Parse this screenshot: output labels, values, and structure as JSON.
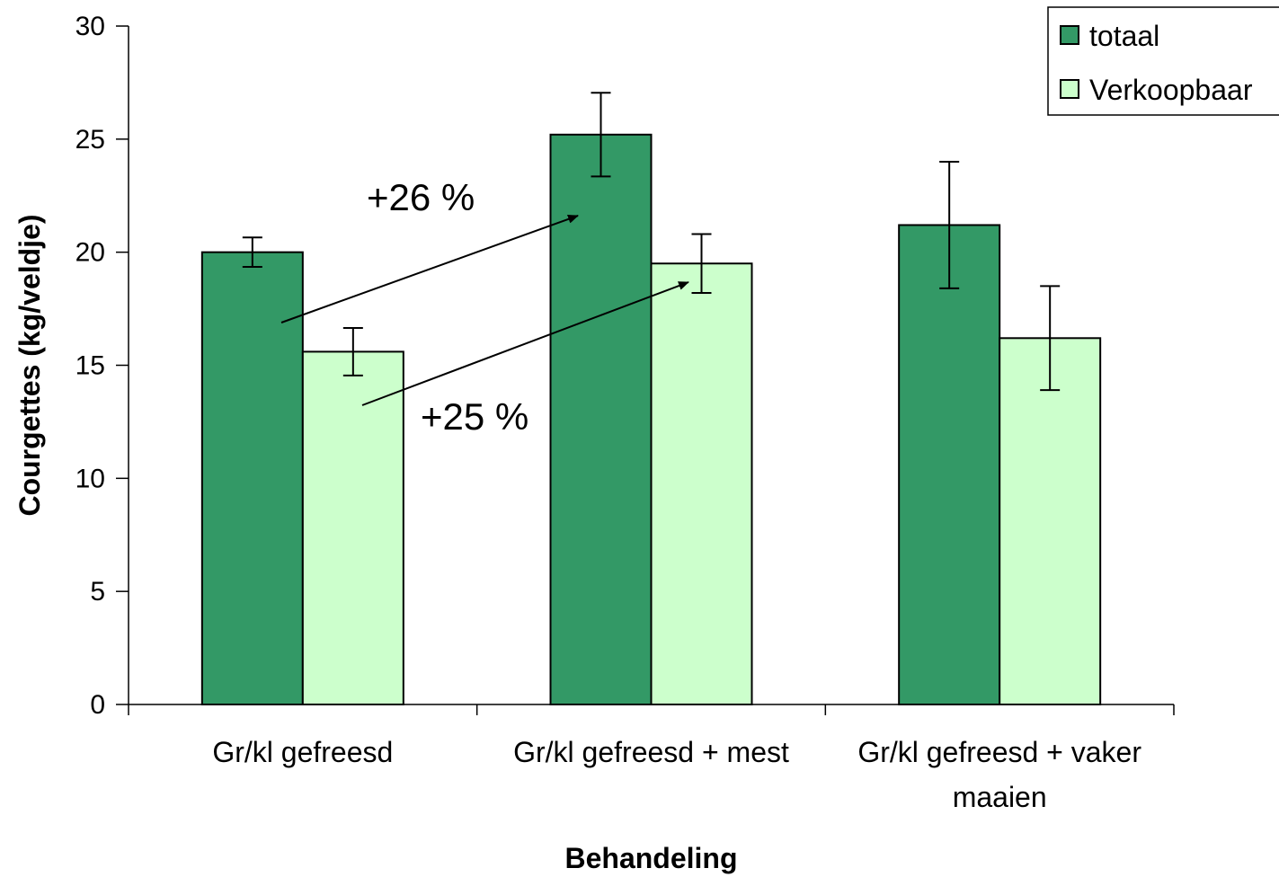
{
  "chart_data": {
    "type": "bar",
    "categories": [
      [
        "Gr/kl gefreesd"
      ],
      [
        "Gr/kl gefreesd + mest"
      ],
      [
        "Gr/kl gefreesd + vaker",
        "maaien"
      ]
    ],
    "series": [
      {
        "name": "totaal",
        "values": [
          20.0,
          25.2,
          21.2
        ],
        "error": [
          0.65,
          1.85,
          2.8
        ],
        "color": "#339966"
      },
      {
        "name": "Verkoopbaar",
        "values": [
          15.6,
          19.5,
          16.2
        ],
        "error": [
          1.05,
          1.3,
          2.3
        ],
        "color": "#ccffcc"
      }
    ],
    "xlabel": "Behandeling",
    "ylabel": "Courgettes (kg/veldje)",
    "ylim": [
      0,
      30
    ],
    "yticks": [
      0,
      5,
      10,
      15,
      20,
      25,
      30
    ],
    "grid": false,
    "legend_position": "top-right",
    "annotations": [
      {
        "text": "+26 %",
        "from": {
          "category": 0,
          "series": 0
        },
        "to": {
          "category": 1,
          "series": 0
        }
      },
      {
        "text": "+25 %",
        "from": {
          "category": 0,
          "series": 1
        },
        "to": {
          "category": 1,
          "series": 1
        }
      }
    ]
  }
}
